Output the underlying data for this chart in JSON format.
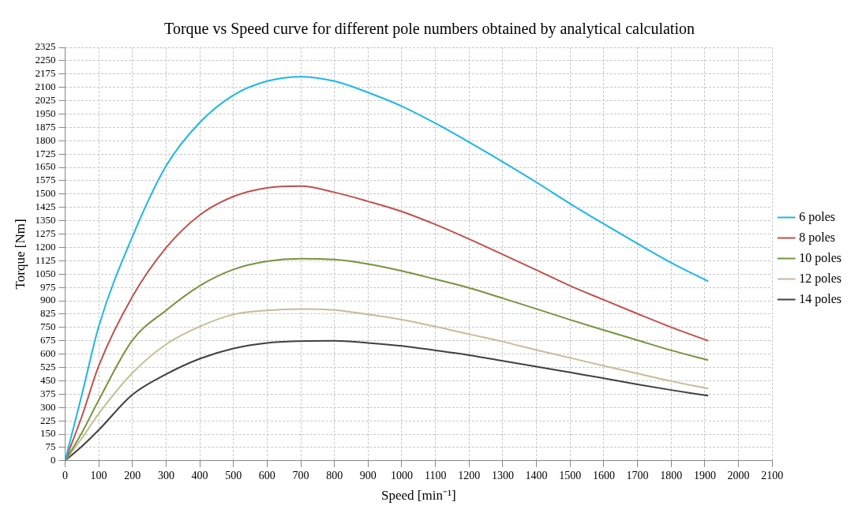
{
  "chart_data": {
    "type": "line",
    "title": "Torque vs Speed curve for different pole numbers obtained by analytical calculation",
    "xlabel": "Speed [min⁻¹]",
    "ylabel": "Torque [Nm]",
    "x": [
      0,
      50,
      100,
      200,
      300,
      400,
      500,
      600,
      700,
      800,
      900,
      1000,
      1100,
      1200,
      1300,
      1400,
      1500,
      1600,
      1700,
      1800,
      1910
    ],
    "series": [
      {
        "name": "6 poles",
        "color": "#1ab7ea",
        "values": [
          0,
          372,
          755,
          1260,
          1658,
          1902,
          2056,
          2135,
          2160,
          2135,
          2071,
          1994,
          1898,
          1792,
          1681,
          1566,
          1446,
          1332,
          1221,
          1114,
          1009
        ]
      },
      {
        "name": "8 poles",
        "color": "#c0504d",
        "values": [
          0,
          250,
          533,
          923,
          1198,
          1382,
          1486,
          1535,
          1545,
          1510,
          1459,
          1402,
          1329,
          1247,
          1160,
          1073,
          984,
          905,
          827,
          751,
          675
        ]
      },
      {
        "name": "10 poles",
        "color": "#77933c",
        "values": [
          0,
          158,
          341,
          678,
          846,
          984,
          1076,
          1122,
          1137,
          1132,
          1107,
          1068,
          1021,
          972,
          914,
          854,
          793,
          735,
          678,
          621,
          566
        ]
      },
      {
        "name": "12 poles",
        "color": "#c4bd97",
        "values": [
          0,
          127,
          265,
          494,
          655,
          755,
          823,
          846,
          854,
          848,
          823,
          794,
          755,
          712,
          670,
          623,
          579,
          534,
          491,
          448,
          406
        ]
      },
      {
        "name": "14 poles",
        "color": "#404040",
        "values": [
          0,
          81,
          173,
          372,
          487,
          574,
          632,
          663,
          673,
          675,
          663,
          646,
          621,
          594,
          562,
          530,
          497,
          464,
          430,
          398,
          366
        ]
      }
    ],
    "xlim": [
      0,
      2100
    ],
    "xticks": [
      0,
      100,
      200,
      300,
      400,
      500,
      600,
      700,
      800,
      900,
      1000,
      1100,
      1200,
      1300,
      1400,
      1500,
      1600,
      1700,
      1800,
      1900,
      2000,
      2100
    ],
    "ylim": [
      0,
      2325
    ],
    "yticks": [
      0,
      75,
      150,
      225,
      300,
      375,
      450,
      525,
      600,
      675,
      750,
      825,
      900,
      975,
      1050,
      1125,
      1200,
      1275,
      1350,
      1425,
      1500,
      1575,
      1650,
      1725,
      1800,
      1875,
      1950,
      2025,
      2100,
      2175,
      2250,
      2325
    ],
    "grid": true,
    "legend": "right",
    "marker": "none",
    "line_style": "solid"
  }
}
